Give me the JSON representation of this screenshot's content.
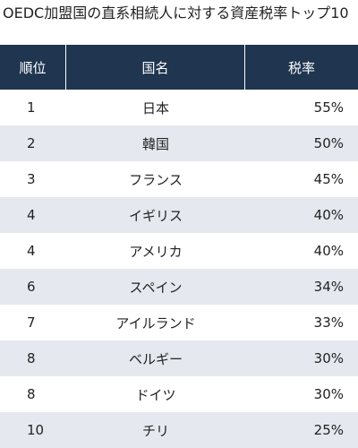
{
  "title": "OEDC加盟国の直系相続人に対する資産税率トップ10",
  "table": {
    "headers": [
      "順位",
      "国名",
      "税率"
    ],
    "rows": [
      {
        "rank": "1",
        "country": "日本",
        "rate": "55%"
      },
      {
        "rank": "2",
        "country": "韓国",
        "rate": "50%"
      },
      {
        "rank": "3",
        "country": "フランス",
        "rate": "45%"
      },
      {
        "rank": "4",
        "country": "イギリス",
        "rate": "40%"
      },
      {
        "rank": "4",
        "country": "アメリカ",
        "rate": "40%"
      },
      {
        "rank": "6",
        "country": "スペイン",
        "rate": "34%"
      },
      {
        "rank": "7",
        "country": "アイルランド",
        "rate": "33%"
      },
      {
        "rank": "8",
        "country": "ベルギー",
        "rate": "30%"
      },
      {
        "rank": "8",
        "country": "ドイツ",
        "rate": "30%"
      },
      {
        "rank": "10",
        "country": "チリ",
        "rate": "25%"
      }
    ]
  },
  "colors": {
    "header_bg": "#1f3550",
    "stripe_bg": "#e5e9ef"
  }
}
